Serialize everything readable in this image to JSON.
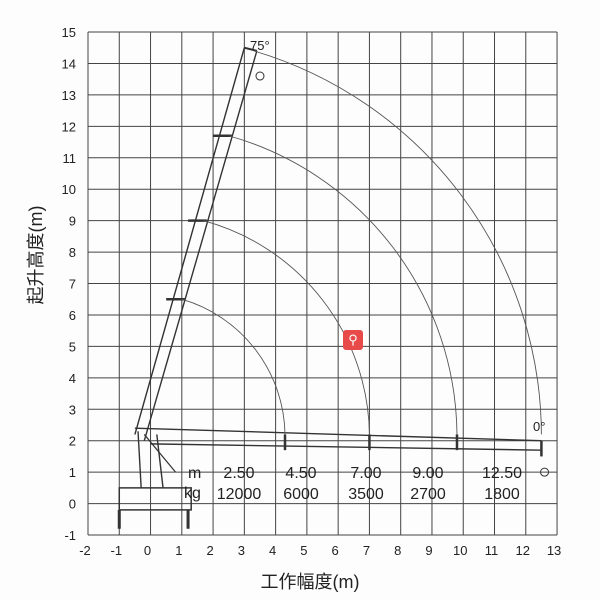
{
  "diagram": {
    "xlabel": "工作幅度(m)",
    "ylabel": "起升高度(m)",
    "x_ticks": [
      "-2",
      "-1",
      "0",
      "1",
      "2",
      "3",
      "4",
      "5",
      "6",
      "7",
      "8",
      "9",
      "10",
      "11",
      "12",
      "13"
    ],
    "y_ticks": [
      "15",
      "14",
      "13",
      "12",
      "11",
      "10",
      "9",
      "8",
      "7",
      "6",
      "5",
      "4",
      "3",
      "2",
      "1",
      "0",
      "-1"
    ],
    "angle_max": "75°",
    "angle_min": "0°",
    "load_table": {
      "row_labels": [
        "m",
        "kg"
      ],
      "radius_m": [
        "2.50",
        "4.50",
        "7.00",
        "9.00",
        "12.50"
      ],
      "load_kg": [
        "12000",
        "6000",
        "3500",
        "2700",
        "1800"
      ]
    }
  },
  "overlay": {
    "search_icon": "search-icon",
    "color": "#e84a4a"
  }
}
